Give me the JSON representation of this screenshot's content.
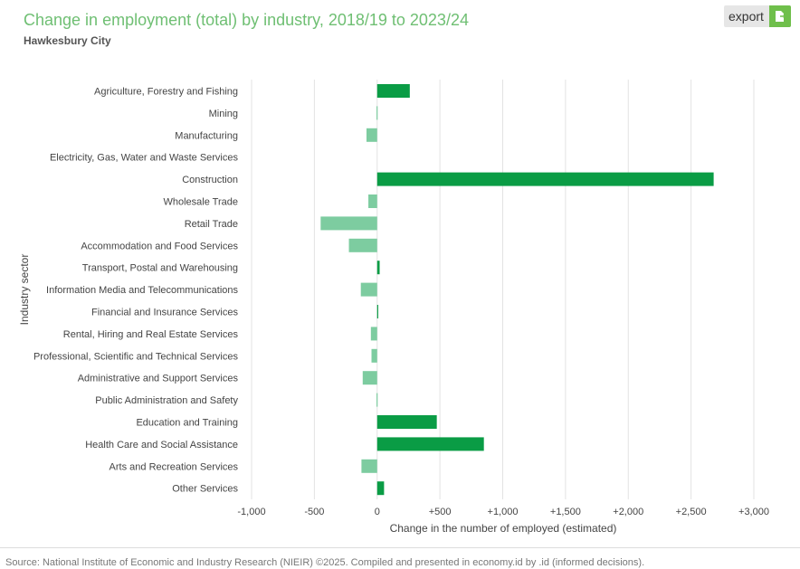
{
  "header": {
    "title": "Change in employment (total) by industry, 2018/19 to 2023/24",
    "subtitle": "Hawkesbury City"
  },
  "export": {
    "label": "export",
    "icon": "export-icon"
  },
  "colors": {
    "positive": "#0a9c45",
    "negative": "#7dcca0",
    "title": "#6fbf73",
    "grid": "#e3e3e3"
  },
  "chart_data": {
    "type": "bar",
    "orientation": "horizontal",
    "xlabel": "Change in the number of employed (estimated)",
    "ylabel": "Industry sector",
    "xlim": [
      -1000,
      3000
    ],
    "xticks": [
      -1000,
      -500,
      0,
      500,
      1000,
      1500,
      2000,
      2500,
      3000
    ],
    "xtick_labels": [
      "-1,000",
      "-500",
      "0",
      "+500",
      "+1,000",
      "+1,500",
      "+2,000",
      "+2,500",
      "+3,000"
    ],
    "grid": true,
    "categories": [
      "Agriculture, Forestry and Fishing",
      "Mining",
      "Manufacturing",
      "Electricity, Gas, Water and Waste Services",
      "Construction",
      "Wholesale Trade",
      "Retail Trade",
      "Accommodation and Food Services",
      "Transport, Postal and Warehousing",
      "Information Media and Telecommunications",
      "Financial and Insurance Services",
      "Rental, Hiring and Real Estate Services",
      "Professional, Scientific and Technical Services",
      "Administrative and Support Services",
      "Public Administration and Safety",
      "Education and Training",
      "Health Care and Social Assistance",
      "Arts and Recreation Services",
      "Other Services"
    ],
    "values": [
      260,
      -5,
      -85,
      0,
      2680,
      -70,
      -450,
      -225,
      20,
      -130,
      8,
      -50,
      -45,
      -115,
      -5,
      475,
      850,
      -125,
      55
    ]
  },
  "footer": {
    "source": "Source: National Institute of Economic and Industry Research (NIEIR) ©2025. Compiled and presented in economy.id by .id (informed decisions)."
  }
}
